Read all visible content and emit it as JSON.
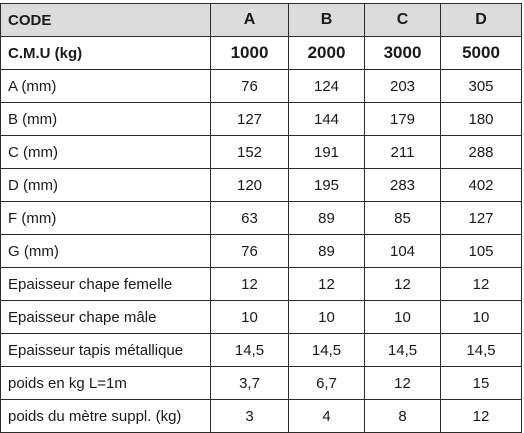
{
  "header": {
    "label": "CODE",
    "codes": [
      "A",
      "B",
      "C",
      "D"
    ]
  },
  "cmu": {
    "label": "C.M.U  (kg)",
    "values": [
      "1000",
      "2000",
      "3000",
      "5000"
    ]
  },
  "rows": [
    {
      "label": "A (mm)",
      "values": [
        "76",
        "124",
        "203",
        "305"
      ]
    },
    {
      "label": "B (mm)",
      "values": [
        "127",
        "144",
        "179",
        "180"
      ]
    },
    {
      "label": "C (mm)",
      "values": [
        "152",
        "191",
        "211",
        "288"
      ]
    },
    {
      "label": "D (mm)",
      "values": [
        "120",
        "195",
        "283",
        "402"
      ]
    },
    {
      "label": "F (mm)",
      "values": [
        "63",
        "89",
        "85",
        "127"
      ]
    },
    {
      "label": "G (mm)",
      "values": [
        "76",
        "89",
        "104",
        "105"
      ]
    },
    {
      "label": "Epaisseur chape femelle",
      "values": [
        "12",
        "12",
        "12",
        "12"
      ]
    },
    {
      "label": "Epaisseur chape mâle",
      "values": [
        "10",
        "10",
        "10",
        "10"
      ]
    },
    {
      "label": "Epaisseur tapis métallique",
      "values": [
        "14,5",
        "14,5",
        "14,5",
        "14,5"
      ]
    },
    {
      "label": "poids en kg  L=1m",
      "values": [
        "3,7",
        "6,7",
        "12",
        "15"
      ]
    },
    {
      "label": "poids du mètre suppl. (kg)",
      "values": [
        "3",
        "4",
        "8",
        "12"
      ]
    }
  ],
  "colors": {
    "header_bg": "#dcdcdc",
    "border": "#2b2b2b",
    "text": "#1a1a1a"
  }
}
